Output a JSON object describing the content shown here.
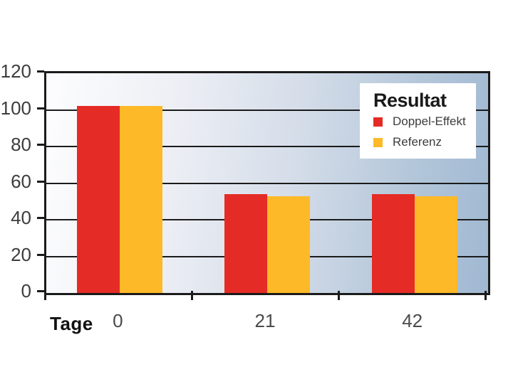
{
  "chart_data": {
    "type": "bar",
    "title": "",
    "xlabel": "Tage",
    "ylabel": "",
    "categories": [
      "0",
      "21",
      "42"
    ],
    "series": [
      {
        "name": "Doppel-Effekt",
        "color": "#e52b25",
        "values": [
          102,
          54,
          54
        ]
      },
      {
        "name": "Referenz",
        "color": "#fdb927",
        "values": [
          102,
          53,
          53
        ]
      }
    ],
    "ylim": [
      0,
      120
    ],
    "yticks": [
      0,
      20,
      40,
      60,
      80,
      100,
      120
    ],
    "grid": "horizontal",
    "gridline_color": "#1b1b1b",
    "plot_gradient": [
      "#fdfdfe",
      "#edeff5",
      "#d5dde9",
      "#b4c7da",
      "#a0b8d2"
    ],
    "legend": {
      "title": "Resultat",
      "position": "top-right"
    }
  }
}
